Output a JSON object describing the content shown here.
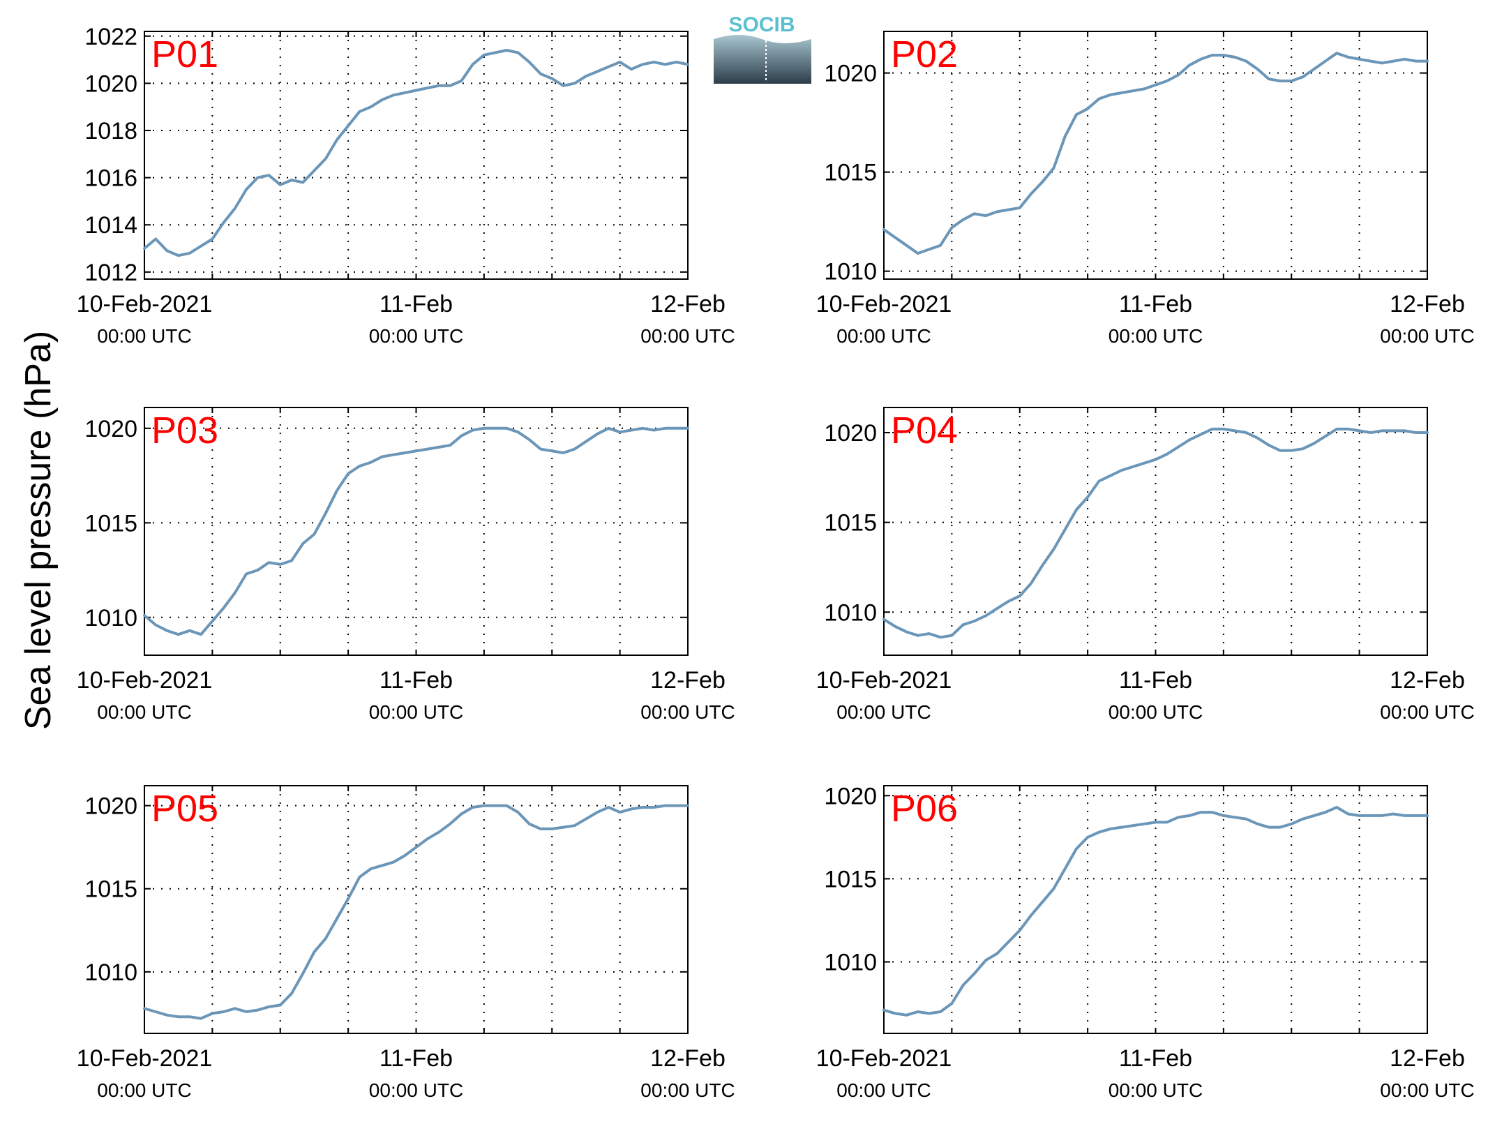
{
  "figure": {
    "ylabel": "Sea level pressure (hPa)",
    "logo_text": "SOCIB",
    "line_color": "#6b96b8",
    "label_color": "#ff0000",
    "x_ticks": [
      {
        "x": 0,
        "date": "10-Feb-2021",
        "time": "00:00 UTC"
      },
      {
        "x": 24,
        "date": "11-Feb",
        "time": "00:00 UTC"
      },
      {
        "x": 48,
        "date": "12-Feb",
        "time": "00:00 UTC"
      }
    ],
    "xlim": [
      0,
      48
    ],
    "x_unit": "hours since 10-Feb-2021 00:00 UTC"
  },
  "chart_data": [
    {
      "type": "line",
      "title": "P01",
      "ylim": [
        1011.7,
        1022.2
      ],
      "yticks": [
        1012,
        1014,
        1016,
        1018,
        1020,
        1022
      ],
      "grid": true,
      "series": [
        {
          "x": [
            0,
            1,
            2,
            3,
            4,
            5,
            6,
            7,
            8,
            9,
            10,
            11,
            12,
            13,
            14,
            15,
            16,
            17,
            18,
            19,
            20,
            21,
            22,
            23,
            24,
            25,
            26,
            27,
            28,
            29,
            30,
            31,
            32,
            33,
            34,
            35,
            36,
            37,
            38,
            39,
            40,
            41,
            42,
            43,
            44,
            45,
            46,
            47,
            48
          ],
          "y": [
            1013.0,
            1013.4,
            1012.9,
            1012.7,
            1012.8,
            1013.1,
            1013.4,
            1014.1,
            1014.7,
            1015.5,
            1016.0,
            1016.1,
            1015.7,
            1015.9,
            1015.8,
            1016.3,
            1016.8,
            1017.6,
            1018.2,
            1018.8,
            1019.0,
            1019.3,
            1019.5,
            1019.6,
            1019.7,
            1019.8,
            1019.9,
            1019.9,
            1020.1,
            1020.8,
            1021.2,
            1021.3,
            1021.4,
            1021.3,
            1020.9,
            1020.4,
            1020.2,
            1019.9,
            1020.0,
            1020.3,
            1020.5,
            1020.7,
            1020.9,
            1020.6,
            1020.8,
            1020.9,
            1020.8,
            1020.9,
            1020.8
          ]
        }
      ]
    },
    {
      "type": "line",
      "title": "P02",
      "ylim": [
        1009.6,
        1022.1
      ],
      "yticks": [
        1010,
        1015,
        1020
      ],
      "grid": true,
      "series": [
        {
          "x": [
            0,
            1,
            2,
            3,
            4,
            5,
            6,
            7,
            8,
            9,
            10,
            11,
            12,
            13,
            14,
            15,
            16,
            17,
            18,
            19,
            20,
            21,
            22,
            23,
            24,
            25,
            26,
            27,
            28,
            29,
            30,
            31,
            32,
            33,
            34,
            35,
            36,
            37,
            38,
            39,
            40,
            41,
            42,
            43,
            44,
            45,
            46,
            47,
            48
          ],
          "y": [
            1012.1,
            1011.7,
            1011.3,
            1010.9,
            1011.1,
            1011.3,
            1012.2,
            1012.6,
            1012.9,
            1012.8,
            1013.0,
            1013.1,
            1013.2,
            1013.9,
            1014.5,
            1015.2,
            1016.8,
            1017.9,
            1018.2,
            1018.7,
            1018.9,
            1019.0,
            1019.1,
            1019.2,
            1019.4,
            1019.6,
            1019.9,
            1020.4,
            1020.7,
            1020.9,
            1020.9,
            1020.8,
            1020.6,
            1020.2,
            1019.7,
            1019.6,
            1019.6,
            1019.8,
            1020.2,
            1020.6,
            1021.0,
            1020.8,
            1020.7,
            1020.6,
            1020.5,
            1020.6,
            1020.7,
            1020.6,
            1020.6
          ]
        }
      ]
    },
    {
      "type": "line",
      "title": "P03",
      "ylim": [
        1008.0,
        1021.1
      ],
      "yticks": [
        1010,
        1015,
        1020
      ],
      "grid": true,
      "series": [
        {
          "x": [
            0,
            1,
            2,
            3,
            4,
            5,
            6,
            7,
            8,
            9,
            10,
            11,
            12,
            13,
            14,
            15,
            16,
            17,
            18,
            19,
            20,
            21,
            22,
            23,
            24,
            25,
            26,
            27,
            28,
            29,
            30,
            31,
            32,
            33,
            34,
            35,
            36,
            37,
            38,
            39,
            40,
            41,
            42,
            43,
            44,
            45,
            46,
            47,
            48
          ],
          "y": [
            1010.1,
            1009.6,
            1009.3,
            1009.1,
            1009.3,
            1009.1,
            1009.8,
            1010.5,
            1011.3,
            1012.3,
            1012.5,
            1012.9,
            1012.8,
            1013.0,
            1013.9,
            1014.4,
            1015.5,
            1016.7,
            1017.6,
            1018.0,
            1018.2,
            1018.5,
            1018.6,
            1018.7,
            1018.8,
            1018.9,
            1019.0,
            1019.1,
            1019.6,
            1019.9,
            1020.0,
            1020.0,
            1020.0,
            1019.8,
            1019.4,
            1018.9,
            1018.8,
            1018.7,
            1018.9,
            1019.3,
            1019.7,
            1020.0,
            1019.8,
            1019.9,
            1020.0,
            1019.9,
            1020.0,
            1020.0,
            1020.0
          ]
        }
      ]
    },
    {
      "type": "line",
      "title": "P04",
      "ylim": [
        1007.6,
        1021.4
      ],
      "yticks": [
        1010,
        1015,
        1020
      ],
      "grid": true,
      "series": [
        {
          "x": [
            0,
            1,
            2,
            3,
            4,
            5,
            6,
            7,
            8,
            9,
            10,
            11,
            12,
            13,
            14,
            15,
            16,
            17,
            18,
            19,
            20,
            21,
            22,
            23,
            24,
            25,
            26,
            27,
            28,
            29,
            30,
            31,
            32,
            33,
            34,
            35,
            36,
            37,
            38,
            39,
            40,
            41,
            42,
            43,
            44,
            45,
            46,
            47,
            48
          ],
          "y": [
            1009.6,
            1009.2,
            1008.9,
            1008.7,
            1008.8,
            1008.6,
            1008.7,
            1009.3,
            1009.5,
            1009.8,
            1010.2,
            1010.6,
            1010.9,
            1011.6,
            1012.6,
            1013.5,
            1014.6,
            1015.7,
            1016.4,
            1017.3,
            1017.6,
            1017.9,
            1018.1,
            1018.3,
            1018.5,
            1018.8,
            1019.2,
            1019.6,
            1019.9,
            1020.2,
            1020.2,
            1020.1,
            1020.0,
            1019.7,
            1019.3,
            1019.0,
            1019.0,
            1019.1,
            1019.4,
            1019.8,
            1020.2,
            1020.2,
            1020.1,
            1020.0,
            1020.1,
            1020.1,
            1020.1,
            1020.0,
            1020.0
          ]
        }
      ]
    },
    {
      "type": "line",
      "title": "P05",
      "ylim": [
        1006.3,
        1021.2
      ],
      "yticks": [
        1010,
        1015,
        1020
      ],
      "grid": true,
      "series": [
        {
          "x": [
            0,
            1,
            2,
            3,
            4,
            5,
            6,
            7,
            8,
            9,
            10,
            11,
            12,
            13,
            14,
            15,
            16,
            17,
            18,
            19,
            20,
            21,
            22,
            23,
            24,
            25,
            26,
            27,
            28,
            29,
            30,
            31,
            32,
            33,
            34,
            35,
            36,
            37,
            38,
            39,
            40,
            41,
            42,
            43,
            44,
            45,
            46,
            47,
            48
          ],
          "y": [
            1007.8,
            1007.6,
            1007.4,
            1007.3,
            1007.3,
            1007.2,
            1007.5,
            1007.6,
            1007.8,
            1007.6,
            1007.7,
            1007.9,
            1008.0,
            1008.7,
            1009.9,
            1011.2,
            1012.0,
            1013.2,
            1014.4,
            1015.7,
            1016.2,
            1016.4,
            1016.6,
            1017.0,
            1017.5,
            1018.0,
            1018.4,
            1018.9,
            1019.5,
            1019.9,
            1020.0,
            1020.0,
            1020.0,
            1019.6,
            1018.9,
            1018.6,
            1018.6,
            1018.7,
            1018.8,
            1019.2,
            1019.6,
            1019.9,
            1019.6,
            1019.8,
            1019.9,
            1019.9,
            1020.0,
            1020.0,
            1020.0
          ]
        }
      ]
    },
    {
      "type": "line",
      "title": "P06",
      "ylim": [
        1005.7,
        1020.6
      ],
      "yticks": [
        1010,
        1015,
        1020
      ],
      "grid": true,
      "series": [
        {
          "x": [
            0,
            1,
            2,
            3,
            4,
            5,
            6,
            7,
            8,
            9,
            10,
            11,
            12,
            13,
            14,
            15,
            16,
            17,
            18,
            19,
            20,
            21,
            22,
            23,
            24,
            25,
            26,
            27,
            28,
            29,
            30,
            31,
            32,
            33,
            34,
            35,
            36,
            37,
            38,
            39,
            40,
            41,
            42,
            43,
            44,
            45,
            46,
            47,
            48
          ],
          "y": [
            1007.1,
            1006.9,
            1006.8,
            1007.0,
            1006.9,
            1007.0,
            1007.5,
            1008.6,
            1009.3,
            1010.1,
            1010.5,
            1011.2,
            1011.9,
            1012.8,
            1013.6,
            1014.4,
            1015.6,
            1016.8,
            1017.5,
            1017.8,
            1018.0,
            1018.1,
            1018.2,
            1018.3,
            1018.4,
            1018.4,
            1018.7,
            1018.8,
            1019.0,
            1019.0,
            1018.8,
            1018.7,
            1018.6,
            1018.3,
            1018.1,
            1018.1,
            1018.3,
            1018.6,
            1018.8,
            1019.0,
            1019.3,
            1018.9,
            1018.8,
            1018.8,
            1018.8,
            1018.9,
            1018.8,
            1018.8,
            1018.8
          ]
        }
      ]
    }
  ]
}
